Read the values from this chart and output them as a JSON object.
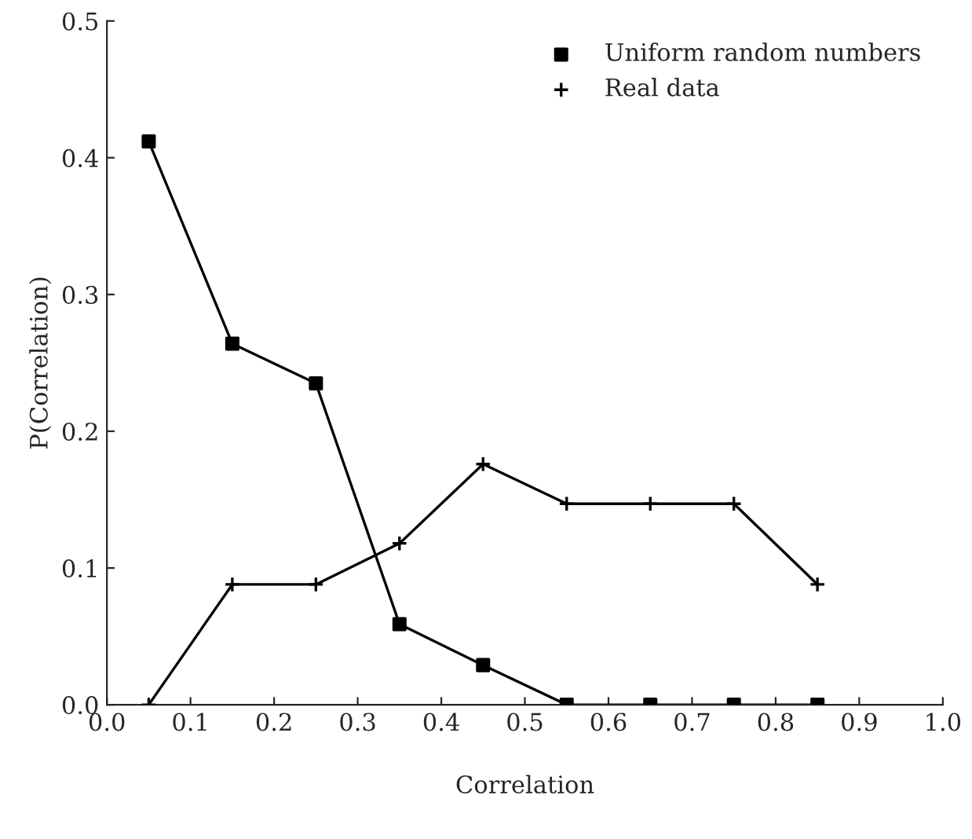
{
  "chart_data": {
    "type": "line",
    "xlabel": "Correlation",
    "ylabel": "P(Correlation)",
    "x": [
      0.05,
      0.15,
      0.25,
      0.35,
      0.45,
      0.55,
      0.65,
      0.75,
      0.85
    ],
    "series": [
      {
        "name": "Uniform random numbers",
        "color": "#000000",
        "marker": "square",
        "values": [
          0.412,
          0.264,
          0.235,
          0.059,
          0.029,
          0.0,
          0.0,
          0.0,
          0.0
        ]
      },
      {
        "name": "Real data",
        "color": "#000000",
        "marker": "cross",
        "values": [
          0.0,
          0.088,
          0.088,
          0.118,
          0.176,
          0.147,
          0.147,
          0.147,
          0.088
        ]
      }
    ],
    "xlim": [
      0.0,
      1.0
    ],
    "xticks": [
      {
        "value": 0.0,
        "label": "0.0"
      },
      0.1,
      0.2,
      0.3,
      0.4,
      0.5,
      0.6,
      0.7,
      0.8,
      0.9,
      {
        "value": 1.0,
        "label": "1.0"
      }
    ],
    "ylim": [
      0.0,
      0.5
    ],
    "yticks": [
      {
        "value": 0.0,
        "label": "0.0"
      },
      0.1,
      0.2,
      0.3,
      0.4,
      0.5
    ],
    "line_style": "solid",
    "grid": false,
    "legend": "top right"
  }
}
